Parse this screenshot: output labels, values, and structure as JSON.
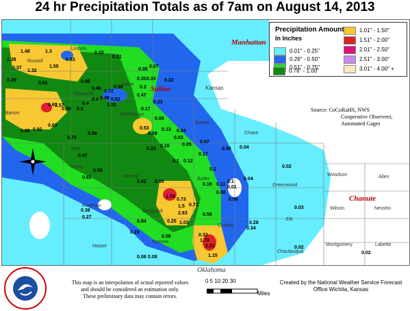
{
  "title": "24 hr Precipitation Totals as of 7am on August 14, 2013",
  "legend": {
    "title": "Precipitation Amounts",
    "subtitle": "In Inches",
    "items": [
      {
        "label": "0.01\" - 0.25\"",
        "color": "#66eeff"
      },
      {
        "label": "0.26\" - 0.50\"",
        "color": "#2266ee"
      },
      {
        "label": "0.51\" - 0.75\"",
        "color": "#22dd22"
      },
      {
        "label": "0.76\" - 1.00\"",
        "color": "#118811"
      },
      {
        "label": "1.01\" - 1.50\"",
        "color": "#f8c832"
      },
      {
        "label": "1.51\" - 2.00\"",
        "color": "#dd2222"
      },
      {
        "label": "2.01\" - 2.50\"",
        "color": "#dd1177"
      },
      {
        "label": "2.51\" - 3.00\"",
        "color": "#cc88ee"
      },
      {
        "label": "3.01\" - 4.00\" +",
        "color": "#f8e8c0"
      }
    ]
  },
  "source": {
    "line1": "Source: CoCoRaHS, NWS",
    "line2": "Cooperative Observers,",
    "line3": "Automated Gages"
  },
  "cities": {
    "manhattan": "Manhattan",
    "salina": "Salina",
    "chanute": "Chanute"
  },
  "state_labels": {
    "kansas": "Kansas",
    "oklahoma": "Oklahoma"
  },
  "counties": {
    "russell": "Russell",
    "ellsworth": "Ellsworth",
    "saline": "Saline",
    "marion": "Marion",
    "chase": "Chase",
    "mcpherson": "McPherson",
    "rice": "Rice",
    "reno": "Reno",
    "harvey": "Harvey",
    "butler": "Butler",
    "greenwood": "Greenwood",
    "woodson": "Woodson",
    "allen": "Allen",
    "wilson": "Wilson",
    "neosho": "Neosho",
    "elk": "Elk",
    "kingman": "Kingman",
    "sedgwick": "Sedgwick",
    "sumner": "Sumner",
    "harper": "Harper",
    "cowley": "Cowley",
    "chautauqua": "Chautauqua",
    "montgomery": "Montgomery",
    "labette": "Labette",
    "barton": "Barton",
    "lincoln": "Lincoln"
  },
  "values": [
    {
      "t": "1.48"
    },
    {
      "t": "1.3"
    },
    {
      "t": "1.38"
    },
    {
      "t": "0.37"
    },
    {
      "t": "1.32"
    },
    {
      "t": "1.55"
    },
    {
      "t": "0.83"
    },
    {
      "t": "0.32"
    },
    {
      "t": "0.21"
    },
    {
      "t": "0.08"
    },
    {
      "t": "0.07"
    },
    {
      "t": "0.39"
    },
    {
      "t": "0.86"
    },
    {
      "t": "0.4"
    },
    {
      "t": "0.35"
    },
    {
      "t": "0.33"
    },
    {
      "t": "0.22"
    },
    {
      "t": "0.46"
    },
    {
      "t": "0.72"
    },
    {
      "t": "0.48"
    },
    {
      "t": "0.82"
    },
    {
      "t": "1.15"
    },
    {
      "t": "0.61"
    },
    {
      "t": "0.2"
    },
    {
      "t": "0.4"
    },
    {
      "t": "0.17"
    },
    {
      "t": "0.47"
    },
    {
      "t": "0.23"
    },
    {
      "t": "0.63"
    },
    {
      "t": "0.65"
    },
    {
      "t": "0.6"
    },
    {
      "t": "1.57"
    },
    {
      "t": "0.98"
    },
    {
      "t": "0.88"
    },
    {
      "t": "0.92"
    },
    {
      "t": "0.63"
    },
    {
      "t": "0.56"
    },
    {
      "t": "0.09"
    },
    {
      "t": "0.75"
    },
    {
      "t": "0.13"
    },
    {
      "t": "0.04"
    },
    {
      "t": "0.09"
    },
    {
      "t": "0.53"
    },
    {
      "t": "0.23"
    },
    {
      "t": "0.16"
    },
    {
      "t": "0.05"
    },
    {
      "t": "0.03"
    },
    {
      "t": "0.07"
    },
    {
      "t": "0.08"
    },
    {
      "t": "0.04"
    },
    {
      "t": "0.47"
    },
    {
      "t": "0.12"
    },
    {
      "t": "0.2"
    },
    {
      "t": "0.17"
    },
    {
      "t": "0.1"
    },
    {
      "t": "0.02"
    },
    {
      "t": "0.01"
    },
    {
      "t": "0.04"
    },
    {
      "t": "0.81"
    },
    {
      "t": "0.42"
    },
    {
      "t": "0.19"
    },
    {
      "t": "0.1"
    },
    {
      "t": "0.11"
    },
    {
      "t": "0.58"
    },
    {
      "t": "0.95"
    },
    {
      "t": "0.08"
    },
    {
      "t": "0.06"
    },
    {
      "t": "0.38"
    },
    {
      "t": "1.79"
    },
    {
      "t": "0.73"
    },
    {
      "t": "1.5"
    },
    {
      "t": "2.63"
    },
    {
      "t": "0.72"
    },
    {
      "t": "0.27"
    },
    {
      "t": "0.84"
    },
    {
      "t": "0.25"
    },
    {
      "t": "1.03"
    },
    {
      "t": "0.59"
    },
    {
      "t": "0.28"
    },
    {
      "t": "0.34"
    },
    {
      "t": "0.03"
    },
    {
      "t": "0.08"
    },
    {
      "t": "0.32"
    },
    {
      "t": "1.73"
    },
    {
      "t": "2.21"
    },
    {
      "t": "1.15"
    },
    {
      "t": "0.02"
    },
    {
      "t": "0.02"
    },
    {
      "t": "0.08"
    },
    {
      "t": "0.08"
    },
    {
      "t": "0.23"
    }
  ],
  "scale": {
    "ticks": "0  5 10  20    30",
    "unit": "Miles"
  },
  "disclaimer": {
    "line1": "This map is an interpolation of actual reported values",
    "line2": "and should be considered an estimation only.",
    "line3": "These preliminary data may contain errors."
  },
  "credit": {
    "line1": "Created by the National Weather Service Forecast",
    "line2": "Office Wichita, Kansas"
  },
  "logo_text": "NATIONAL WEATHER SERVICE"
}
